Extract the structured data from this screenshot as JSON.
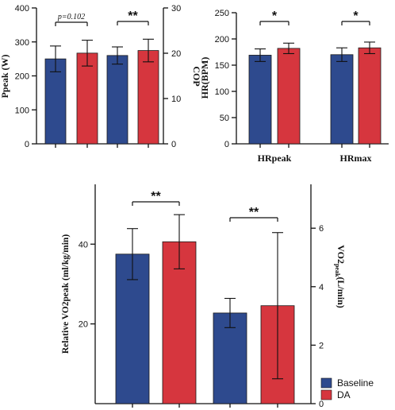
{
  "colors": {
    "baseline": "#2e4a8e",
    "da": "#d6363e",
    "axis": "#111111"
  },
  "legend": {
    "baseline_label": "Baseline",
    "da_label": "DA"
  },
  "chart_data": [
    {
      "id": "ppeak-cop",
      "type": "bar",
      "ylabel_left": "Ppeak (W)",
      "ylabel_right": "COP",
      "ylim_left": [
        0,
        400
      ],
      "ylim_right": [
        0,
        30
      ],
      "yticks_left": [
        "0",
        "100",
        "200",
        "300",
        "400"
      ],
      "yticks_right": [
        "0",
        "10",
        "20",
        "30"
      ],
      "series_names": [
        "Baseline",
        "DA"
      ],
      "groups": [
        {
          "axis": "left",
          "values": [
            250,
            267
          ],
          "errors": [
            38,
            38
          ]
        },
        {
          "axis": "right",
          "values": [
            19.5,
            20.6
          ],
          "errors": [
            1.9,
            2.5
          ]
        }
      ],
      "annotations": [
        {
          "text": "p=0.102",
          "group": 0
        },
        {
          "text": "**",
          "group": 1
        }
      ]
    },
    {
      "id": "hr",
      "type": "bar",
      "ylabel_left": "HR(BPM)",
      "ylim_left": [
        0,
        250
      ],
      "yticks_left": [
        "0",
        "50",
        "100",
        "150",
        "200",
        "250"
      ],
      "categories": [
        "HRpeak",
        "HRmax"
      ],
      "series_names": [
        "Baseline",
        "DA"
      ],
      "groups": [
        {
          "axis": "left",
          "values": [
            169,
            182
          ],
          "errors": [
            12,
            10
          ]
        },
        {
          "axis": "left",
          "values": [
            170,
            183
          ],
          "errors": [
            13,
            11
          ]
        }
      ],
      "annotations": [
        {
          "text": "*",
          "group": 0
        },
        {
          "text": "*",
          "group": 1
        }
      ]
    },
    {
      "id": "vo2",
      "type": "bar",
      "ylabel_left": "Relative VO2peak (ml/kg/min)",
      "ylabel_right_main": "VO2",
      "ylabel_right_sub": "peak",
      "ylabel_right_tail": "(L/min)",
      "ylim_left": [
        0,
        55
      ],
      "ylim_right": [
        0,
        7.5
      ],
      "yticks_left": [
        "20",
        "40"
      ],
      "yticks_right": [
        "0",
        "2",
        "4",
        "6"
      ],
      "series_names": [
        "Baseline",
        "DA"
      ],
      "groups": [
        {
          "axis": "left",
          "values": [
            37.5,
            40.6
          ],
          "errors": [
            6.4,
            6.8
          ]
        },
        {
          "axis": "right",
          "values": [
            3.1,
            3.35
          ],
          "errors": [
            0.5,
            2.5
          ]
        }
      ],
      "annotations": [
        {
          "text": "**",
          "group": 0
        },
        {
          "text": "**",
          "group": 1
        }
      ]
    }
  ]
}
